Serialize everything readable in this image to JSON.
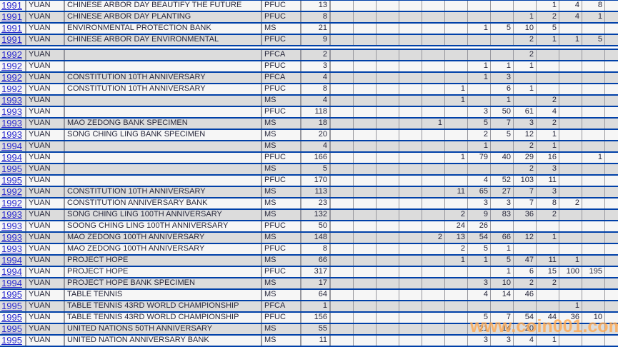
{
  "watermark": {
    "text": "www.coin001.com",
    "color": "#FF9933"
  },
  "colors": {
    "row_light": "#F6F6F6",
    "row_dark": "#DCDCDC",
    "horizontal_border": "#0040A8",
    "vertical_border": "#97979D",
    "year_link": "#2A2ACF",
    "text": "#26263A"
  },
  "table": {
    "num_grade_columns": 13,
    "separator_after_row": 4,
    "rows": [
      {
        "year": "1991",
        "denomination": "YUAN",
        "description": "CHINESE ARBOR DAY BEAUTIFY THE FUTURE",
        "grade": "PFUC",
        "total": "13",
        "values": [
          "",
          "",
          "",
          "",
          "",
          "",
          "",
          "",
          "",
          "1",
          "4",
          "8",
          ""
        ]
      },
      {
        "year": "1991",
        "denomination": "YUAN",
        "description": "CHINESE ARBOR DAY PLANTING",
        "grade": "PFUC",
        "total": "8",
        "values": [
          "",
          "",
          "",
          "",
          "",
          "",
          "",
          "",
          "1",
          "2",
          "4",
          "1",
          ""
        ]
      },
      {
        "year": "1991",
        "denomination": "YUAN",
        "description": "ENVIRONMENTAL PROTECTION BANK",
        "grade": "MS",
        "total": "21",
        "values": [
          "",
          "",
          "",
          "",
          "",
          "",
          "1",
          "5",
          "10",
          "5",
          "",
          "",
          ""
        ]
      },
      {
        "year": "1991",
        "denomination": "YUAN",
        "description": "CHINESE ARBOR DAY ENVIRONMENTAL",
        "grade": "PFUC",
        "total": "9",
        "values": [
          "",
          "",
          "",
          "",
          "",
          "",
          "",
          "",
          "2",
          "1",
          "1",
          "5",
          ""
        ]
      },
      {
        "year": "1992",
        "denomination": "YUAN",
        "description": "",
        "grade": "PFCA",
        "total": "2",
        "values": [
          "",
          "",
          "",
          "",
          "",
          "",
          "",
          "",
          "2",
          "",
          "",
          "",
          ""
        ]
      },
      {
        "year": "1992",
        "denomination": "YUAN",
        "description": "",
        "grade": "PFUC",
        "total": "3",
        "values": [
          "",
          "",
          "",
          "",
          "",
          "",
          "1",
          "1",
          "1",
          "",
          "",
          "",
          ""
        ]
      },
      {
        "year": "1992",
        "denomination": "YUAN",
        "description": "CONSTITUTION 10TH ANNIVERSARY",
        "grade": "PFCA",
        "total": "4",
        "values": [
          "",
          "",
          "",
          "",
          "",
          "",
          "1",
          "3",
          "",
          "",
          "",
          "",
          ""
        ]
      },
      {
        "year": "1992",
        "denomination": "YUAN",
        "description": "CONSTITUTION 10TH ANNIVERSARY",
        "grade": "PFUC",
        "total": "8",
        "values": [
          "",
          "",
          "",
          "",
          "",
          "1",
          "",
          "6",
          "1",
          "",
          "",
          "",
          ""
        ]
      },
      {
        "year": "1993",
        "denomination": "YUAN",
        "description": "",
        "grade": "MS",
        "total": "4",
        "values": [
          "",
          "",
          "",
          "",
          "",
          "1",
          "",
          "1",
          "",
          "2",
          "",
          "",
          ""
        ]
      },
      {
        "year": "1993",
        "denomination": "YUAN",
        "description": "",
        "grade": "PFUC",
        "total": "118",
        "values": [
          "",
          "",
          "",
          "",
          "",
          "",
          "3",
          "50",
          "61",
          "4",
          "",
          "",
          ""
        ]
      },
      {
        "year": "1993",
        "denomination": "YUAN",
        "description": "MAO ZEDONG BANK SPECIMEN",
        "grade": "MS",
        "total": "18",
        "values": [
          "",
          "",
          "",
          "",
          "1",
          "",
          "5",
          "7",
          "3",
          "2",
          "",
          "",
          ""
        ]
      },
      {
        "year": "1993",
        "denomination": "YUAN",
        "description": "SONG CHING LING BANK SPECIMEN",
        "grade": "MS",
        "total": "20",
        "values": [
          "",
          "",
          "",
          "",
          "",
          "",
          "2",
          "5",
          "12",
          "1",
          "",
          "",
          ""
        ]
      },
      {
        "year": "1994",
        "denomination": "YUAN",
        "description": "",
        "grade": "MS",
        "total": "4",
        "values": [
          "",
          "",
          "",
          "",
          "",
          "",
          "1",
          "",
          "2",
          "1",
          "",
          "",
          ""
        ]
      },
      {
        "year": "1994",
        "denomination": "YUAN",
        "description": "",
        "grade": "PFUC",
        "total": "166",
        "values": [
          "",
          "",
          "",
          "",
          "",
          "1",
          "79",
          "40",
          "29",
          "16",
          "",
          "1",
          ""
        ]
      },
      {
        "year": "1995",
        "denomination": "YUAN",
        "description": "",
        "grade": "MS",
        "total": "5",
        "values": [
          "",
          "",
          "",
          "",
          "",
          "",
          "",
          "",
          "2",
          "3",
          "",
          "",
          ""
        ]
      },
      {
        "year": "1995",
        "denomination": "YUAN",
        "description": "",
        "grade": "PFUC",
        "total": "170",
        "values": [
          "",
          "",
          "",
          "",
          "",
          "",
          "4",
          "52",
          "103",
          "11",
          "",
          "",
          ""
        ]
      },
      {
        "year": "1992",
        "denomination": "YUAN",
        "description": "CONSTITUTION 10TH ANNIVERSARY",
        "grade": "MS",
        "total": "113",
        "values": [
          "",
          "",
          "",
          "",
          "",
          "11",
          "65",
          "27",
          "7",
          "3",
          "",
          "",
          ""
        ]
      },
      {
        "year": "1992",
        "denomination": "YUAN",
        "description": "CONSTITUTION ANNIVERSARY BANK",
        "grade": "MS",
        "total": "23",
        "values": [
          "",
          "",
          "",
          "",
          "",
          "",
          "3",
          "3",
          "7",
          "8",
          "2",
          "",
          ""
        ]
      },
      {
        "year": "1993",
        "denomination": "YUAN",
        "description": "SONG CHING LING 100TH ANNIVERSARY",
        "grade": "MS",
        "total": "132",
        "values": [
          "",
          "",
          "",
          "",
          "",
          "2",
          "9",
          "83",
          "36",
          "2",
          "",
          "",
          ""
        ]
      },
      {
        "year": "1993",
        "denomination": "YUAN",
        "description": "SOONG CHING LING 100TH ANNIVERSARY",
        "grade": "PFUC",
        "total": "50",
        "values": [
          "",
          "",
          "",
          "",
          "",
          "24",
          "26",
          "",
          "",
          "",
          "",
          "",
          ""
        ]
      },
      {
        "year": "1993",
        "denomination": "YUAN",
        "description": "MAO ZEDONG 100TH ANNIVERSARY",
        "grade": "MS",
        "total": "148",
        "values": [
          "",
          "",
          "",
          "",
          "2",
          "13",
          "54",
          "66",
          "12",
          "1",
          "",
          "",
          ""
        ]
      },
      {
        "year": "1993",
        "denomination": "YUAN",
        "description": "MAO ZEDONG 100TH ANNIVERSARY",
        "grade": "PFUC",
        "total": "8",
        "values": [
          "",
          "",
          "",
          "",
          "",
          "2",
          "5",
          "1",
          "",
          "",
          "",
          "",
          ""
        ]
      },
      {
        "year": "1994",
        "denomination": "YUAN",
        "description": "PROJECT HOPE",
        "grade": "MS",
        "total": "66",
        "values": [
          "",
          "",
          "",
          "",
          "",
          "1",
          "1",
          "5",
          "47",
          "11",
          "1",
          "",
          ""
        ]
      },
      {
        "year": "1994",
        "denomination": "YUAN",
        "description": "PROJECT HOPE",
        "grade": "PFUC",
        "total": "317",
        "values": [
          "",
          "",
          "",
          "",
          "",
          "",
          "",
          "1",
          "6",
          "15",
          "100",
          "195",
          ""
        ]
      },
      {
        "year": "1994",
        "denomination": "YUAN",
        "description": "PROJECT HOPE BANK SPECIMEN",
        "grade": "MS",
        "total": "17",
        "values": [
          "",
          "",
          "",
          "",
          "",
          "",
          "3",
          "10",
          "2",
          "2",
          "",
          "",
          ""
        ]
      },
      {
        "year": "1995",
        "denomination": "YUAN",
        "description": "TABLE TENNIS",
        "grade": "MS",
        "total": "64",
        "values": [
          "",
          "",
          "",
          "",
          "",
          "",
          "4",
          "14",
          "46",
          "",
          "",
          "",
          ""
        ]
      },
      {
        "year": "1995",
        "denomination": "YUAN",
        "description": "TABLE TENNIS 43RD WORLD CHAMPIONSHIP",
        "grade": "PFCA",
        "total": "1",
        "values": [
          "",
          "",
          "",
          "",
          "",
          "",
          "",
          "",
          "",
          "",
          "1",
          "",
          ""
        ]
      },
      {
        "year": "1995",
        "denomination": "YUAN",
        "description": "TABLE TENNIS 43RD WORLD CHAMPIONSHIP",
        "grade": "PFUC",
        "total": "156",
        "values": [
          "",
          "",
          "",
          "",
          "",
          "",
          "5",
          "7",
          "54",
          "44",
          "36",
          "10",
          ""
        ]
      },
      {
        "year": "1995",
        "denomination": "YUAN",
        "description": "UNITED NATIONS 50TH ANNIVERSARY",
        "grade": "MS",
        "total": "55",
        "values": [
          "",
          "",
          "",
          "",
          "",
          "",
          "21",
          "14",
          "20",
          "",
          "",
          "",
          ""
        ]
      },
      {
        "year": "1995",
        "denomination": "YUAN",
        "description": "UNITED NATION ANNIVERSARY BANK",
        "grade": "MS",
        "total": "11",
        "values": [
          "",
          "",
          "",
          "",
          "",
          "",
          "3",
          "3",
          "4",
          "1",
          "",
          "",
          ""
        ]
      }
    ]
  }
}
